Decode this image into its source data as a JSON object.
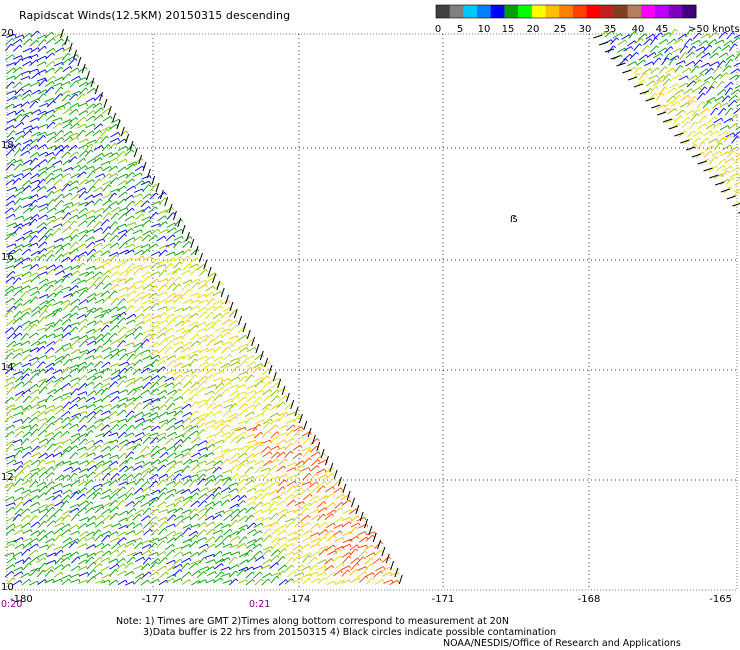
{
  "title": "Rapidscat Winds(12.5KM) 20150315 descending",
  "colorbar": {
    "colors": [
      "#404040",
      "#808080",
      "#00c8ff",
      "#0080ff",
      "#0000ff",
      "#00a000",
      "#00ff00",
      "#ffff00",
      "#ffc000",
      "#ff8000",
      "#ff4000",
      "#ff0000",
      "#c02020",
      "#804020",
      "#b08060",
      "#ff00ff",
      "#c000ff",
      "#8000c0",
      "#400080"
    ],
    "labels": [
      "0",
      "5",
      "10",
      "15",
      "20",
      "25",
      "30",
      "35",
      "40",
      "45",
      ">50 knots"
    ]
  },
  "map": {
    "lat_labels": [
      "20",
      "18",
      "16",
      "14",
      "12",
      "10"
    ],
    "lon_labels": [
      "-180",
      "-177",
      "-174",
      "-171",
      "-168",
      "-165"
    ],
    "station_label": "ẞ"
  },
  "times": [
    "0:20",
    "0:21"
  ],
  "notes": {
    "line1": "Note: 1) Times are GMT 2)Times along bottom correspond to measurement at 20N",
    "line2": "3)Data buffer is 22 hrs from 20150315 4) Black circles indicate possible contamination",
    "line3": "NOAA/NESDIS/Office of Research and Applications"
  },
  "wind_colors": {
    "slow": "#0000ff",
    "moderate": "#00a000",
    "fresh": "#80c000",
    "strong": "#e0e000",
    "gale": "#ffc000",
    "storm": "#ff4000",
    "flag": "#000000"
  }
}
